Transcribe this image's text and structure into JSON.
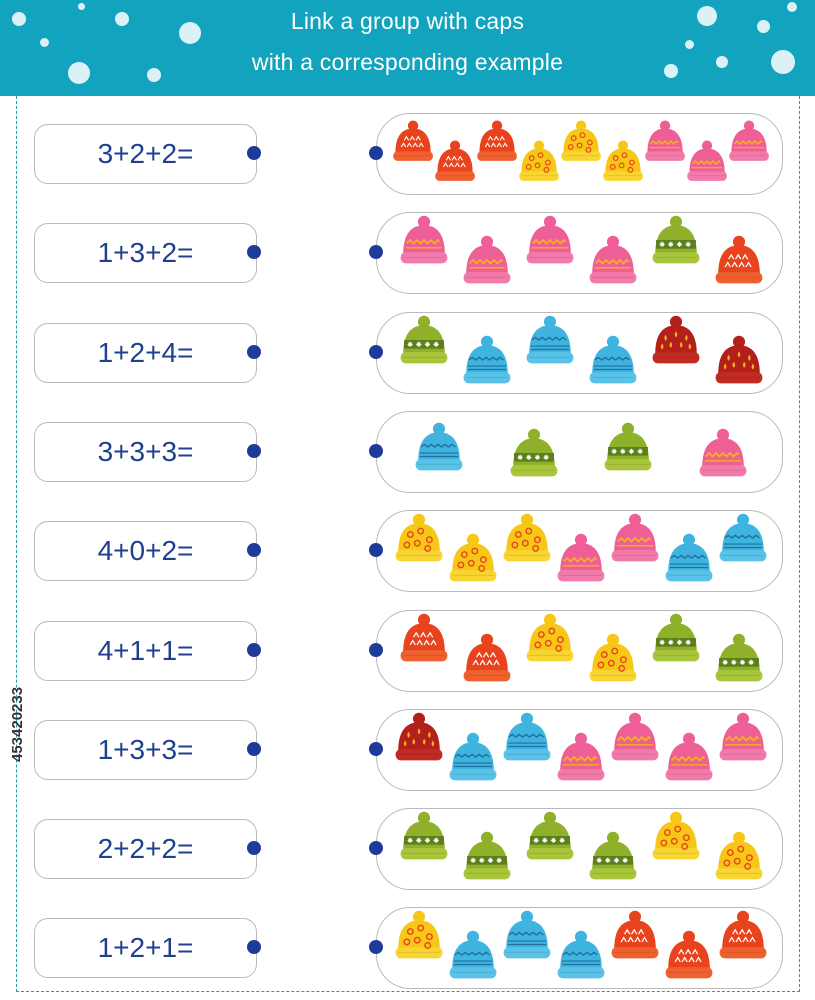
{
  "header": {
    "title_lines": [
      "Link a group with caps",
      "with a corresponding example"
    ],
    "background": "#12a3bf"
  },
  "examples": [
    "3+2+2=",
    "1+3+2=",
    "1+2+4=",
    "3+3+3=",
    "4+0+2=",
    "4+1+1=",
    "1+3+3=",
    "2+2+2=",
    "1+2+1="
  ],
  "hat_colors": {
    "red": {
      "body": "#e8431c",
      "brim": "#f0602e",
      "pom": "#e8431c",
      "accent": "#ffffff"
    },
    "pink": {
      "body": "#ee5f98",
      "brim": "#f27aab",
      "pom": "#ee5f98",
      "accent": "#f2b21e"
    },
    "yellow": {
      "body": "#f7c717",
      "brim": "#f9d531",
      "pom": "#f7c717",
      "accent": "#e8431c"
    },
    "green": {
      "body": "#8fb12a",
      "brim": "#a9c53a",
      "pom": "#8fb12a",
      "accent": "#ffffff"
    },
    "blue": {
      "body": "#3fb4df",
      "brim": "#58c2e8",
      "pom": "#3fb4df",
      "accent": "#1f6f9f"
    },
    "darkred": {
      "body": "#b3201c",
      "brim": "#c22a24",
      "pom": "#b3201c",
      "accent": "#f5b21a"
    }
  },
  "groups": [
    [
      "red",
      "red",
      "red",
      "yellow",
      "yellow",
      "yellow",
      "pink",
      "pink",
      "pink"
    ],
    [
      "pink",
      "pink",
      "pink",
      "pink",
      "green",
      "red"
    ],
    [
      "green",
      "blue",
      "blue",
      "blue",
      "darkred",
      "darkred"
    ],
    [
      "blue",
      "green",
      "green",
      "pink"
    ],
    [
      "yellow",
      "yellow",
      "yellow",
      "pink",
      "pink",
      "blue",
      "blue"
    ],
    [
      "red",
      "red",
      "yellow",
      "yellow",
      "green",
      "green"
    ],
    [
      "darkred",
      "blue",
      "blue",
      "pink",
      "pink",
      "pink",
      "pink"
    ],
    [
      "green",
      "green",
      "green",
      "green",
      "yellow",
      "yellow"
    ],
    [
      "yellow",
      "blue",
      "blue",
      "blue",
      "red",
      "red",
      "red"
    ]
  ],
  "stock_id": "453420233"
}
